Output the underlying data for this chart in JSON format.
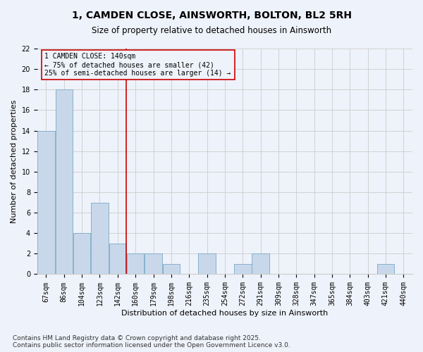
{
  "title": "1, CAMDEN CLOSE, AINSWORTH, BOLTON, BL2 5RH",
  "subtitle": "Size of property relative to detached houses in Ainsworth",
  "xlabel": "Distribution of detached houses by size in Ainsworth",
  "ylabel": "Number of detached properties",
  "categories": [
    "67sqm",
    "86sqm",
    "104sqm",
    "123sqm",
    "142sqm",
    "160sqm",
    "179sqm",
    "198sqm",
    "216sqm",
    "235sqm",
    "254sqm",
    "272sqm",
    "291sqm",
    "309sqm",
    "328sqm",
    "347sqm",
    "365sqm",
    "384sqm",
    "403sqm",
    "421sqm",
    "440sqm"
  ],
  "values": [
    14,
    18,
    4,
    7,
    3,
    2,
    2,
    1,
    0,
    2,
    0,
    1,
    2,
    0,
    0,
    0,
    0,
    0,
    0,
    1,
    0
  ],
  "bar_color": "#c8d8ea",
  "bar_edge_color": "#7aaac8",
  "bar_linewidth": 0.6,
  "vline_x": 4.5,
  "vline_color": "#cc0000",
  "vline_linewidth": 1.2,
  "annotation_text": "1 CAMDEN CLOSE: 140sqm\n← 75% of detached houses are smaller (42)\n25% of semi-detached houses are larger (14) →",
  "annotation_box_color": "#cc0000",
  "annotation_fontsize": 7,
  "ylim": [
    0,
    22
  ],
  "yticks": [
    0,
    2,
    4,
    6,
    8,
    10,
    12,
    14,
    16,
    18,
    20,
    22
  ],
  "grid_color": "#cccccc",
  "background_color": "#eef2fa",
  "footer_text": "Contains HM Land Registry data © Crown copyright and database right 2025.\nContains public sector information licensed under the Open Government Licence v3.0.",
  "title_fontsize": 10,
  "subtitle_fontsize": 8.5,
  "xlabel_fontsize": 8,
  "ylabel_fontsize": 8,
  "tick_fontsize": 7,
  "footer_fontsize": 6.5
}
